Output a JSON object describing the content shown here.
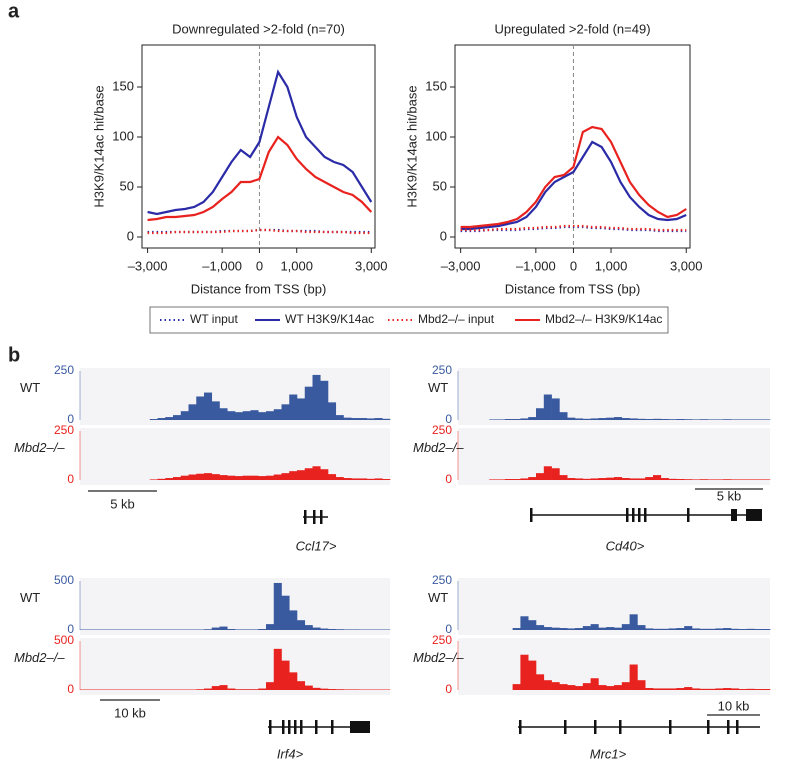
{
  "panel_labels": {
    "a": "a",
    "b": "b"
  },
  "chart_data": [
    {
      "type": "line",
      "title": "Downregulated >2-fold (n=70)",
      "x_label": "Distance from TSS (bp)",
      "y_label": "H3K9/K14ac hit/base",
      "xlim": [
        -3150,
        3100
      ],
      "ylim": [
        -11,
        192
      ],
      "xticks": [
        {
          "value": -3000,
          "label": "–3,000"
        },
        {
          "value": -1000,
          "label": "–1,000"
        },
        0,
        {
          "value": 1000,
          "label": "1,000"
        },
        {
          "value": 3000,
          "label": "3,000"
        }
      ],
      "yticks": [
        0,
        50,
        100,
        150
      ],
      "legend": "bottom",
      "x": [
        -3000,
        -2750,
        -2500,
        -2250,
        -2000,
        -1750,
        -1500,
        -1250,
        -1000,
        -750,
        -500,
        -250,
        0,
        250,
        500,
        750,
        1000,
        1250,
        1500,
        1750,
        2000,
        2250,
        2500,
        2750,
        3000
      ],
      "series": [
        {
          "name": "WT input",
          "color": "#2b2ba8",
          "style": "dotted",
          "values": [
            5,
            5,
            5,
            5,
            5,
            5,
            5,
            5,
            6,
            6,
            6,
            6,
            7,
            7,
            7,
            6,
            6,
            6,
            6,
            5,
            5,
            5,
            5,
            5,
            5
          ]
        },
        {
          "name": "WT H3K9/K14ac",
          "color": "#2b2ba8",
          "style": "solid",
          "values": [
            25,
            23,
            25,
            27,
            28,
            30,
            35,
            45,
            60,
            75,
            87,
            80,
            95,
            130,
            165,
            150,
            120,
            100,
            90,
            80,
            75,
            72,
            65,
            50,
            35
          ]
        },
        {
          "name": "Mbd2–/– input",
          "color": "#e8221e",
          "style": "dotted",
          "values": [
            4,
            4,
            4,
            5,
            5,
            5,
            5,
            5,
            5,
            6,
            6,
            6,
            7,
            7,
            6,
            6,
            6,
            5,
            5,
            5,
            5,
            5,
            4,
            4,
            4
          ]
        },
        {
          "name": "Mbd2–/– H3K9/K14ac",
          "color": "#e8221e",
          "style": "solid",
          "values": [
            17,
            18,
            20,
            20,
            21,
            22,
            25,
            30,
            38,
            45,
            55,
            55,
            58,
            85,
            100,
            92,
            78,
            68,
            60,
            55,
            50,
            45,
            42,
            35,
            25
          ]
        }
      ]
    },
    {
      "type": "line",
      "title": "Upregulated >2-fold (n=49)",
      "x_label": "Distance from TSS (bp)",
      "y_label": "H3K9/K14ac hit/base",
      "xlim": [
        -3150,
        3100
      ],
      "ylim": [
        -11,
        192
      ],
      "xticks": [
        {
          "value": -3000,
          "label": "–3,000"
        },
        {
          "value": -1000,
          "label": "–1,000"
        },
        0,
        {
          "value": 1000,
          "label": "1,000"
        },
        {
          "value": 3000,
          "label": "3,000"
        }
      ],
      "yticks": [
        0,
        50,
        100,
        150
      ],
      "x": [
        -3000,
        -2750,
        -2500,
        -2250,
        -2000,
        -1750,
        -1500,
        -1250,
        -1000,
        -750,
        -500,
        -250,
        0,
        250,
        500,
        750,
        1000,
        1250,
        1500,
        1750,
        2000,
        2250,
        2500,
        2750,
        3000
      ],
      "series": [
        {
          "color": "#2b2ba8",
          "style": "dotted",
          "values": [
            6,
            6,
            6,
            7,
            7,
            7,
            7,
            8,
            8,
            9,
            9,
            10,
            10,
            10,
            9,
            9,
            8,
            8,
            7,
            7,
            7,
            6,
            6,
            6,
            6
          ]
        },
        {
          "color": "#2b2ba8",
          "style": "solid",
          "values": [
            8,
            8,
            9,
            10,
            11,
            13,
            15,
            20,
            30,
            45,
            55,
            60,
            65,
            80,
            95,
            90,
            75,
            55,
            40,
            30,
            22,
            18,
            17,
            18,
            22
          ]
        },
        {
          "color": "#e8221e",
          "style": "dotted",
          "values": [
            7,
            7,
            7,
            7,
            8,
            8,
            8,
            9,
            9,
            10,
            10,
            11,
            11,
            11,
            10,
            10,
            9,
            9,
            8,
            8,
            8,
            7,
            7,
            7,
            7
          ]
        },
        {
          "color": "#e8221e",
          "style": "solid",
          "values": [
            10,
            10,
            11,
            12,
            13,
            15,
            18,
            25,
            35,
            50,
            60,
            62,
            70,
            105,
            110,
            108,
            95,
            75,
            55,
            42,
            32,
            25,
            20,
            22,
            28
          ]
        }
      ]
    },
    {
      "type": "track",
      "gene": "Ccl17>",
      "scale_bar": "5 kb",
      "tracks": [
        {
          "label": "WT",
          "color": "#3a5aa0",
          "ylim": [
            0,
            250
          ],
          "yticks": [
            0,
            250
          ],
          "values": [
            0,
            0,
            0,
            0,
            0,
            0,
            0,
            0,
            0,
            5,
            10,
            15,
            25,
            45,
            80,
            120,
            140,
            95,
            60,
            45,
            40,
            45,
            50,
            40,
            45,
            55,
            80,
            130,
            110,
            170,
            230,
            200,
            90,
            25,
            12,
            10,
            10,
            8,
            10,
            6
          ]
        },
        {
          "label": "Mbd2–/–",
          "color": "#e8221e",
          "ylim": [
            0,
            250
          ],
          "yticks": [
            0,
            250
          ],
          "values": [
            0,
            0,
            0,
            0,
            0,
            0,
            0,
            0,
            0,
            3,
            6,
            10,
            15,
            22,
            28,
            32,
            35,
            30,
            25,
            22,
            20,
            22,
            22,
            20,
            22,
            28,
            35,
            45,
            50,
            60,
            70,
            55,
            30,
            15,
            10,
            8,
            8,
            6,
            8,
            5
          ]
        }
      ]
    },
    {
      "type": "track",
      "gene": "Cd40>",
      "scale_bar": "5 kb",
      "tracks": [
        {
          "label": "WT",
          "color": "#3a5aa0",
          "ylim": [
            0,
            250
          ],
          "yticks": [
            0,
            250
          ],
          "values": [
            0,
            0,
            0,
            0,
            3,
            3,
            5,
            5,
            8,
            15,
            60,
            130,
            110,
            40,
            12,
            8,
            6,
            8,
            10,
            12,
            15,
            10,
            8,
            6,
            5,
            6,
            5,
            4,
            5,
            4,
            3,
            4,
            3,
            3,
            4,
            3,
            3,
            3,
            3,
            3
          ]
        },
        {
          "label": "Mbd2–/–",
          "color": "#e8221e",
          "ylim": [
            0,
            250
          ],
          "yticks": [
            0,
            250
          ],
          "values": [
            0,
            0,
            0,
            0,
            3,
            3,
            5,
            5,
            8,
            15,
            35,
            70,
            60,
            25,
            10,
            8,
            6,
            8,
            10,
            12,
            15,
            10,
            8,
            8,
            15,
            25,
            10,
            6,
            5,
            4,
            3,
            4,
            3,
            3,
            4,
            3,
            3,
            3,
            3,
            3
          ]
        }
      ]
    },
    {
      "type": "track",
      "gene": "Irf4>",
      "scale_bar": "10 kb",
      "tracks": [
        {
          "label": "WT",
          "color": "#3a5aa0",
          "ylim": [
            0,
            500
          ],
          "yticks": [
            0,
            500
          ],
          "values": [
            5,
            5,
            5,
            5,
            5,
            5,
            5,
            5,
            5,
            5,
            5,
            5,
            5,
            5,
            5,
            5,
            8,
            25,
            35,
            10,
            6,
            6,
            6,
            10,
            60,
            480,
            350,
            200,
            100,
            50,
            25,
            15,
            10,
            8,
            6,
            6,
            5,
            5,
            5,
            5
          ]
        },
        {
          "label": "Mbd2–/–",
          "color": "#e8221e",
          "ylim": [
            0,
            500
          ],
          "yticks": [
            0,
            500
          ],
          "values": [
            5,
            5,
            5,
            5,
            5,
            5,
            5,
            5,
            5,
            5,
            5,
            5,
            5,
            5,
            5,
            8,
            15,
            40,
            50,
            15,
            8,
            8,
            8,
            15,
            80,
            420,
            300,
            180,
            90,
            45,
            22,
            14,
            10,
            8,
            6,
            6,
            5,
            5,
            5,
            5
          ]
        }
      ]
    },
    {
      "type": "track",
      "gene": "Mrc1>",
      "scale_bar": "10 kb",
      "tracks": [
        {
          "label": "WT",
          "color": "#3a5aa0",
          "ylim": [
            0,
            250
          ],
          "yticks": [
            0,
            250
          ],
          "values": [
            0,
            0,
            0,
            0,
            0,
            0,
            0,
            10,
            70,
            50,
            25,
            15,
            12,
            10,
            8,
            10,
            20,
            30,
            12,
            15,
            12,
            30,
            80,
            25,
            8,
            6,
            6,
            8,
            10,
            20,
            8,
            6,
            6,
            8,
            10,
            6,
            5,
            6,
            5,
            5
          ]
        },
        {
          "label": "Mbd2–/–",
          "color": "#e8221e",
          "ylim": [
            0,
            250
          ],
          "yticks": [
            0,
            250
          ],
          "values": [
            0,
            0,
            0,
            0,
            0,
            0,
            0,
            30,
            180,
            150,
            80,
            50,
            40,
            30,
            25,
            20,
            35,
            60,
            25,
            20,
            25,
            40,
            130,
            50,
            10,
            8,
            8,
            8,
            10,
            15,
            8,
            6,
            6,
            8,
            10,
            8,
            5,
            6,
            5,
            5
          ]
        }
      ]
    }
  ]
}
